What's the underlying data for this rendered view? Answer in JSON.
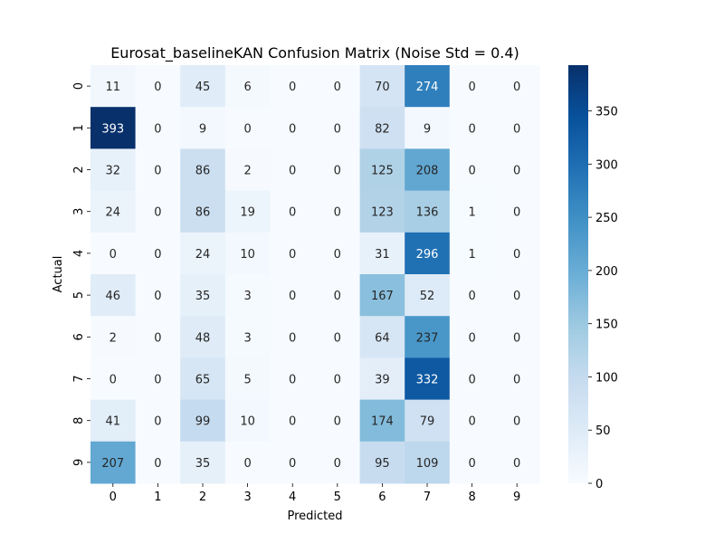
{
  "chart_data": {
    "type": "heatmap",
    "title": "Eurosat_baselineKAN Confusion Matrix (Noise Std = 0.4)",
    "xlabel": "Predicted",
    "ylabel": "Actual",
    "x_categories": [
      "0",
      "1",
      "2",
      "3",
      "4",
      "5",
      "6",
      "7",
      "8",
      "9"
    ],
    "y_categories": [
      "0",
      "1",
      "2",
      "3",
      "4",
      "5",
      "6",
      "7",
      "8",
      "9"
    ],
    "values": [
      [
        11,
        0,
        45,
        6,
        0,
        0,
        70,
        274,
        0,
        0
      ],
      [
        393,
        0,
        9,
        0,
        0,
        0,
        82,
        9,
        0,
        0
      ],
      [
        32,
        0,
        86,
        2,
        0,
        0,
        125,
        208,
        0,
        0
      ],
      [
        24,
        0,
        86,
        19,
        0,
        0,
        123,
        136,
        1,
        0
      ],
      [
        0,
        0,
        24,
        10,
        0,
        0,
        31,
        296,
        1,
        0
      ],
      [
        46,
        0,
        35,
        3,
        0,
        0,
        167,
        52,
        0,
        0
      ],
      [
        2,
        0,
        48,
        3,
        0,
        0,
        64,
        237,
        0,
        0
      ],
      [
        0,
        0,
        65,
        5,
        0,
        0,
        39,
        332,
        0,
        0
      ],
      [
        41,
        0,
        99,
        10,
        0,
        0,
        174,
        79,
        0,
        0
      ],
      [
        207,
        0,
        35,
        0,
        0,
        0,
        95,
        109,
        0,
        0
      ]
    ],
    "colormap": "Blues",
    "vmin": 0,
    "vmax": 393,
    "colorbar_ticks": [
      0,
      50,
      100,
      150,
      200,
      250,
      300,
      350
    ],
    "annotations": true
  }
}
